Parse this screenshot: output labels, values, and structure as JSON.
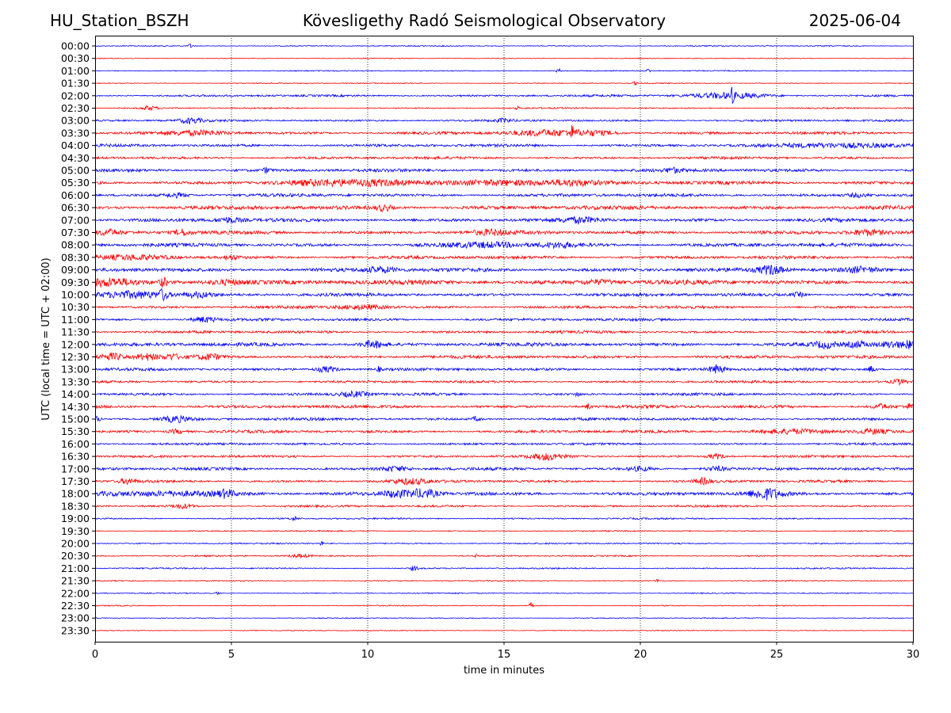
{
  "header": {
    "station": "HU_Station_BSZH",
    "observatory": "Kövesligethy Radó Seismological Observatory",
    "date": "2025-06-04"
  },
  "chart_data": {
    "type": "line",
    "title": "Kövesligethy Radó Seismological Observatory",
    "xlabel": "time in minutes",
    "ylabel": "UTC (local time = UTC + 02:00)",
    "xlim": [
      0,
      30
    ],
    "x_ticks": [
      "0",
      "5",
      "10",
      "15",
      "20",
      "25",
      "30"
    ],
    "grid": "vertical dotted lines at 5-minute intervals",
    "trace_colors": [
      "#0000ff",
      "#ff0000"
    ],
    "rows": [
      {
        "label": "00:00",
        "noise": 0.6,
        "events": [
          [
            3.5,
            0.05,
            3
          ]
        ]
      },
      {
        "label": "00:30",
        "noise": 0.5,
        "events": []
      },
      {
        "label": "01:00",
        "noise": 0.6,
        "events": [
          [
            17.0,
            0.05,
            3
          ],
          [
            20.3,
            0.05,
            2.5
          ]
        ]
      },
      {
        "label": "01:30",
        "noise": 0.55,
        "events": [
          [
            19.8,
            0.05,
            2
          ]
        ]
      },
      {
        "label": "02:00",
        "noise": 1.2,
        "events": [
          [
            23.2,
            1.0,
            3.5
          ],
          [
            23.35,
            0.05,
            8
          ]
        ]
      },
      {
        "label": "02:30",
        "noise": 0.8,
        "events": [
          [
            2.0,
            0.2,
            2.5
          ],
          [
            15.5,
            0.05,
            2
          ]
        ]
      },
      {
        "label": "03:00",
        "noise": 1.2,
        "events": [
          [
            3.5,
            0.3,
            3
          ],
          [
            15.0,
            0.2,
            2
          ]
        ]
      },
      {
        "label": "03:30",
        "noise": 1.6,
        "events": [
          [
            3.8,
            0.8,
            2.5
          ],
          [
            16.5,
            1.0,
            3
          ],
          [
            17.5,
            0.05,
            6
          ],
          [
            18.3,
            0.6,
            2.5
          ]
        ]
      },
      {
        "label": "04:00",
        "noise": 1.6,
        "events": [
          [
            27.5,
            1.5,
            2.5
          ]
        ]
      },
      {
        "label": "04:30",
        "noise": 1.4,
        "events": []
      },
      {
        "label": "05:00",
        "noise": 1.8,
        "events": [
          [
            6.3,
            0.1,
            3
          ],
          [
            21.2,
            0.2,
            2.5
          ]
        ]
      },
      {
        "label": "05:30",
        "noise": 2.0,
        "events": [
          [
            8.0,
            1.0,
            2.5
          ],
          [
            10.5,
            1.0,
            3
          ],
          [
            15.2,
            1.5,
            3
          ],
          [
            17.5,
            0.6,
            2.5
          ]
        ]
      },
      {
        "label": "06:00",
        "noise": 1.8,
        "events": [
          [
            3.0,
            0.3,
            2.5
          ],
          [
            28.0,
            0.3,
            2
          ]
        ]
      },
      {
        "label": "06:30",
        "noise": 2.2,
        "events": [
          [
            10.6,
            0.2,
            3.5
          ]
        ]
      },
      {
        "label": "07:00",
        "noise": 2.0,
        "events": [
          [
            4.9,
            0.3,
            3
          ],
          [
            17.8,
            0.5,
            2.5
          ]
        ]
      },
      {
        "label": "07:30",
        "noise": 2.0,
        "events": [
          [
            0.5,
            0.3,
            3
          ],
          [
            3.2,
            0.2,
            3.5
          ],
          [
            14.5,
            0.5,
            2.5
          ],
          [
            28.3,
            0.4,
            3
          ]
        ]
      },
      {
        "label": "08:00",
        "noise": 2.0,
        "events": [
          [
            14.5,
            1.0,
            2.5
          ],
          [
            17.0,
            0.5,
            2.5
          ]
        ]
      },
      {
        "label": "08:30",
        "noise": 1.8,
        "events": [
          [
            1.5,
            1.0,
            2
          ],
          [
            5.0,
            0.2,
            2.5
          ]
        ]
      },
      {
        "label": "09:00",
        "noise": 2.2,
        "events": [
          [
            10.5,
            0.4,
            3
          ],
          [
            24.8,
            0.3,
            5
          ],
          [
            28.0,
            0.5,
            3
          ]
        ]
      },
      {
        "label": "09:30",
        "noise": 2.6,
        "events": [
          [
            0.5,
            0.6,
            4
          ],
          [
            2.5,
            0.1,
            5
          ],
          [
            4.8,
            0.6,
            3
          ],
          [
            18.5,
            0.5,
            2.5
          ]
        ]
      },
      {
        "label": "10:00",
        "noise": 1.8,
        "events": [
          [
            1.5,
            0.9,
            4.5
          ],
          [
            2.5,
            0.1,
            6
          ],
          [
            3.8,
            0.4,
            3
          ],
          [
            25.8,
            0.2,
            2.5
          ]
        ]
      },
      {
        "label": "10:30",
        "noise": 1.6,
        "events": [
          [
            9.8,
            0.6,
            2.5
          ]
        ]
      },
      {
        "label": "11:00",
        "noise": 1.5,
        "events": [
          [
            4.0,
            0.3,
            3
          ]
        ]
      },
      {
        "label": "11:30",
        "noise": 1.5,
        "events": []
      },
      {
        "label": "12:00",
        "noise": 2.0,
        "events": [
          [
            10.2,
            0.3,
            4
          ],
          [
            26.8,
            0.3,
            3.5
          ],
          [
            28.0,
            0.3,
            3.5
          ],
          [
            29.2,
            0.3,
            3.5
          ],
          [
            29.9,
            0.2,
            4
          ]
        ]
      },
      {
        "label": "12:30",
        "noise": 1.8,
        "events": [
          [
            0.6,
            0.3,
            4
          ],
          [
            1.9,
            0.3,
            3.5
          ],
          [
            2.8,
            0.2,
            3
          ],
          [
            4.2,
            0.3,
            3
          ]
        ]
      },
      {
        "label": "13:00",
        "noise": 1.6,
        "events": [
          [
            8.5,
            0.3,
            3.5
          ],
          [
            10.4,
            0.05,
            3
          ],
          [
            22.8,
            0.2,
            5
          ],
          [
            28.5,
            0.1,
            4
          ]
        ]
      },
      {
        "label": "13:30",
        "noise": 1.4,
        "events": [
          [
            29.5,
            0.2,
            3
          ]
        ]
      },
      {
        "label": "14:00",
        "noise": 1.5,
        "events": [
          [
            9.5,
            0.4,
            3
          ],
          [
            17.7,
            0.05,
            4
          ]
        ]
      },
      {
        "label": "14:30",
        "noise": 1.8,
        "events": [
          [
            18.1,
            0.05,
            4
          ],
          [
            28.8,
            0.2,
            3
          ],
          [
            29.9,
            0.1,
            3
          ]
        ]
      },
      {
        "label": "15:00",
        "noise": 1.6,
        "events": [
          [
            0.1,
            0.1,
            3
          ],
          [
            3.0,
            0.4,
            3.5
          ],
          [
            14.0,
            0.1,
            3
          ]
        ]
      },
      {
        "label": "15:30",
        "noise": 1.6,
        "events": [
          [
            3.0,
            0.2,
            2.5
          ],
          [
            25.5,
            1.0,
            2.5
          ],
          [
            28.5,
            0.4,
            3
          ]
        ]
      },
      {
        "label": "16:00",
        "noise": 1.3,
        "events": []
      },
      {
        "label": "16:30",
        "noise": 1.4,
        "events": [
          [
            16.6,
            0.4,
            3.5
          ],
          [
            22.8,
            0.2,
            3
          ]
        ]
      },
      {
        "label": "17:00",
        "noise": 1.6,
        "events": [
          [
            11.0,
            0.4,
            3
          ],
          [
            20.0,
            0.3,
            2.5
          ],
          [
            22.8,
            0.3,
            2.5
          ]
        ]
      },
      {
        "label": "17:30",
        "noise": 1.5,
        "events": [
          [
            1.2,
            0.2,
            3
          ],
          [
            11.5,
            0.5,
            3
          ],
          [
            22.3,
            0.2,
            3.5
          ]
        ]
      },
      {
        "label": "18:00",
        "noise": 2.0,
        "events": [
          [
            3.0,
            1.5,
            2.5
          ],
          [
            4.8,
            0.2,
            4
          ],
          [
            11.0,
            0.3,
            3.5
          ],
          [
            12.0,
            0.4,
            5
          ],
          [
            24.6,
            0.4,
            6
          ]
        ]
      },
      {
        "label": "18:30",
        "noise": 1.2,
        "events": [
          [
            3.2,
            0.3,
            2.5
          ]
        ]
      },
      {
        "label": "19:00",
        "noise": 0.9,
        "events": [
          [
            7.3,
            0.1,
            2.5
          ]
        ]
      },
      {
        "label": "19:30",
        "noise": 0.7,
        "events": []
      },
      {
        "label": "20:00",
        "noise": 0.8,
        "events": [
          [
            8.3,
            0.05,
            3
          ]
        ]
      },
      {
        "label": "20:30",
        "noise": 0.8,
        "events": [
          [
            7.5,
            0.3,
            2
          ],
          [
            14.0,
            0.05,
            2
          ]
        ]
      },
      {
        "label": "21:00",
        "noise": 0.8,
        "events": [
          [
            11.7,
            0.1,
            3
          ]
        ]
      },
      {
        "label": "21:30",
        "noise": 0.6,
        "events": [
          [
            20.6,
            0.05,
            2
          ]
        ]
      },
      {
        "label": "22:00",
        "noise": 0.6,
        "events": [
          [
            4.5,
            0.05,
            2.5
          ]
        ]
      },
      {
        "label": "22:30",
        "noise": 0.6,
        "events": [
          [
            16.0,
            0.05,
            4
          ]
        ]
      },
      {
        "label": "23:00",
        "noise": 0.5,
        "events": []
      },
      {
        "label": "23:30",
        "noise": 0.5,
        "events": []
      }
    ]
  }
}
